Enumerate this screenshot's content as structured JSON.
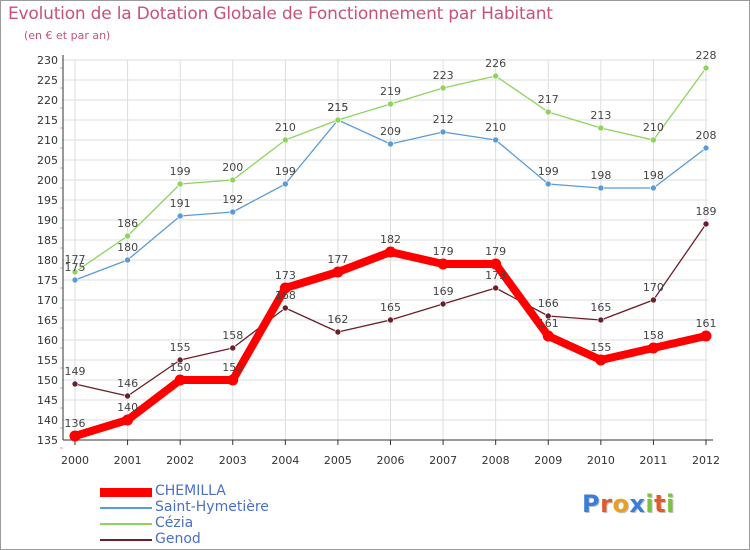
{
  "title": "Evolution de la Dotation Globale de Fonctionnement par Habitant",
  "subtitle": "(en € et par an)",
  "logo_text": "Proxiti",
  "chart_data": {
    "type": "line",
    "x": [
      "2000",
      "2001",
      "2002",
      "2003",
      "2004",
      "2005",
      "2006",
      "2007",
      "2008",
      "2009",
      "2010",
      "2011",
      "2012"
    ],
    "ylim": [
      135,
      230
    ],
    "yticks": [
      135,
      140,
      145,
      150,
      155,
      160,
      165,
      170,
      175,
      180,
      185,
      190,
      195,
      200,
      205,
      210,
      215,
      220,
      225,
      230
    ],
    "grid": true,
    "legend_position": "bottom-left",
    "series": [
      {
        "name": "CHEMILLA",
        "color": "#ff0000",
        "values": [
          136,
          140,
          150,
          150,
          173,
          177,
          182,
          179,
          179,
          161,
          155,
          158,
          161
        ]
      },
      {
        "name": "Saint-Hymetière",
        "color": "#5b9bd5",
        "values": [
          175,
          180,
          191,
          192,
          199,
          215,
          209,
          212,
          210,
          199,
          198,
          198,
          208
        ]
      },
      {
        "name": "Cézia",
        "color": "#8fd35f",
        "values": [
          177,
          186,
          199,
          200,
          210,
          215,
          219,
          223,
          226,
          217,
          213,
          210,
          228
        ]
      },
      {
        "name": "Genod",
        "color": "#6b1f2a",
        "values": [
          149,
          146,
          155,
          158,
          168,
          162,
          165,
          169,
          173,
          166,
          165,
          170,
          189
        ]
      }
    ]
  }
}
